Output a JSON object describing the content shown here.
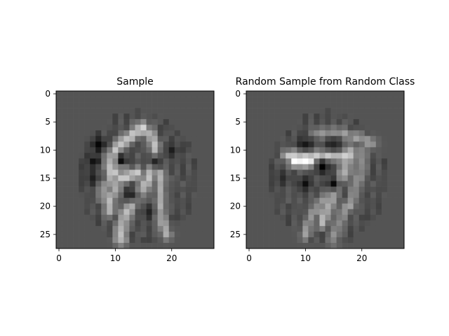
{
  "chart_data": [
    {
      "type": "heatmap",
      "title": "Sample",
      "colormap": "gray",
      "grid": false,
      "xlim": [
        -0.5,
        27.5
      ],
      "ylim": [
        27.5,
        -0.5
      ],
      "xticks": [
        0,
        10,
        20
      ],
      "yticks": [
        0,
        5,
        10,
        15,
        20,
        25
      ],
      "background_level": 0.33,
      "strokes": [
        {
          "points": [
            [
              15,
              6
            ],
            [
              12,
              8
            ],
            [
              10,
              10
            ],
            [
              9,
              13
            ],
            [
              11,
              15
            ],
            [
              14,
              14
            ]
          ],
          "level": 0.82
        },
        {
          "points": [
            [
              14,
              6
            ],
            [
              16,
              7
            ],
            [
              17,
              9
            ],
            [
              17,
              12
            ],
            [
              16,
              15
            ]
          ],
          "level": 0.75
        },
        {
          "points": [
            [
              16,
              15
            ],
            [
              14,
              18
            ],
            [
              12,
              21
            ],
            [
              11,
              24
            ],
            [
              11,
              26
            ]
          ],
          "level": 0.78
        },
        {
          "points": [
            [
              9,
              11
            ],
            [
              9,
              14
            ],
            [
              10,
              17
            ],
            [
              9,
              19
            ],
            [
              9,
              21
            ]
          ],
          "level": 0.72
        },
        {
          "points": [
            [
              18,
              14
            ],
            [
              18,
              18
            ],
            [
              18,
              22
            ],
            [
              19,
              25
            ]
          ],
          "level": 0.68
        },
        {
          "points": [
            [
              10,
              12
            ],
            [
              11,
              13
            ]
          ],
          "level": 1.0
        },
        {
          "points": [
            [
              8,
              16
            ],
            [
              8,
              18
            ],
            [
              9,
              20
            ]
          ],
          "level": 0.62
        }
      ],
      "dark_spots": [
        {
          "x": 7,
          "y": 9,
          "level": 0.06
        },
        {
          "x": 6,
          "y": 12,
          "level": 0.12
        },
        {
          "x": 11,
          "y": 12,
          "level": 0.1
        },
        {
          "x": 17,
          "y": 12,
          "level": 0.14
        },
        {
          "x": 6,
          "y": 15,
          "level": 0.16
        },
        {
          "x": 13,
          "y": 18,
          "level": 0.14
        },
        {
          "x": 20,
          "y": 10,
          "level": 0.2
        },
        {
          "x": 16,
          "y": 21,
          "level": 0.18
        }
      ]
    },
    {
      "type": "heatmap",
      "title": "Random Sample from Random Class",
      "colormap": "gray",
      "grid": false,
      "xlim": [
        -0.5,
        27.5
      ],
      "ylim": [
        27.5,
        -0.5
      ],
      "xticks": [
        0,
        10,
        20
      ],
      "yticks": [
        0,
        5,
        10,
        15,
        20,
        25
      ],
      "background_level": 0.33,
      "strokes": [
        {
          "points": [
            [
              7,
              11
            ],
            [
              10,
              11
            ],
            [
              14,
              11
            ],
            [
              18,
              11
            ]
          ],
          "level": 0.82
        },
        {
          "points": [
            [
              8,
              12
            ],
            [
              11,
              12
            ]
          ],
          "level": 1.0
        },
        {
          "points": [
            [
              12,
              7
            ],
            [
              16,
              7
            ],
            [
              20,
              8
            ],
            [
              22,
              9
            ]
          ],
          "level": 0.62
        },
        {
          "points": [
            [
              18,
              10
            ],
            [
              17,
              14
            ],
            [
              15,
              17
            ],
            [
              14,
              20
            ],
            [
              13,
              23
            ]
          ],
          "level": 0.72
        },
        {
          "points": [
            [
              20,
              10
            ],
            [
              20,
              13
            ],
            [
              19,
              16
            ],
            [
              18,
              20
            ]
          ],
          "level": 0.6
        },
        {
          "points": [
            [
              13,
              19
            ],
            [
              11,
              22
            ],
            [
              10,
              25
            ]
          ],
          "level": 0.62
        },
        {
          "points": [
            [
              17,
              20
            ],
            [
              16,
              23
            ],
            [
              15,
              26
            ]
          ],
          "level": 0.58
        }
      ],
      "dark_spots": [
        {
          "x": 10,
          "y": 9,
          "level": 0.12
        },
        {
          "x": 15,
          "y": 9,
          "level": 0.14
        },
        {
          "x": 13,
          "y": 13,
          "level": 0.08
        },
        {
          "x": 10,
          "y": 16,
          "level": 0.1
        },
        {
          "x": 15,
          "y": 16,
          "level": 0.08
        },
        {
          "x": 6,
          "y": 15,
          "level": 0.2
        }
      ]
    }
  ]
}
